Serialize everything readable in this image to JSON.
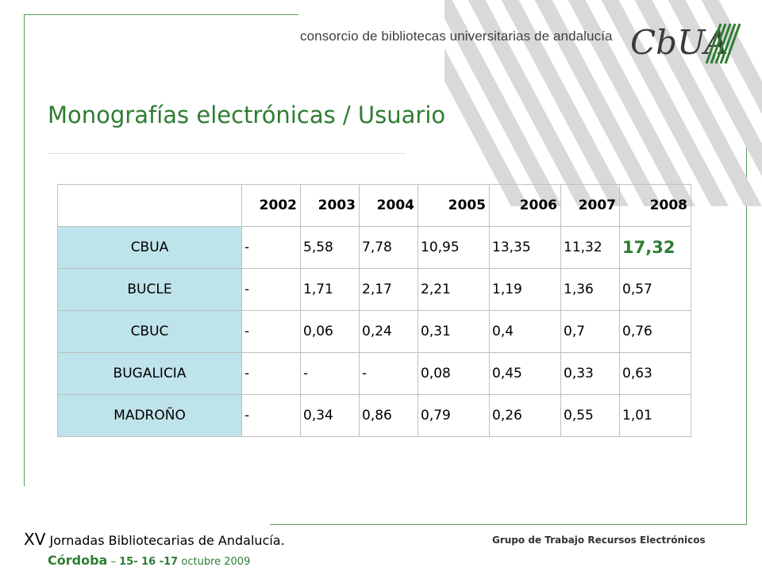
{
  "header": {
    "consortium_text": "consorcio de bibliotecas universitarias de andalucía",
    "logo_text": "CbUA"
  },
  "title": "Monografías electrónicas / Usuario",
  "table": {
    "years": [
      "2002",
      "2003",
      "2004",
      "2005",
      "2006",
      "2007",
      "2008"
    ],
    "rows": [
      {
        "label": "CBUA",
        "values": [
          "-",
          "5,58",
          "7,78",
          "10,95",
          "13,35",
          "11,32",
          "17,32"
        ]
      },
      {
        "label": "BUCLE",
        "values": [
          "-",
          "1,71",
          "2,17",
          "2,21",
          "1,19",
          "1,36",
          "0,57"
        ]
      },
      {
        "label": "CBUC",
        "values": [
          "-",
          "0,06",
          "0,24",
          "0,31",
          "0,4",
          "0,7",
          "0,76"
        ]
      },
      {
        "label": "BUGALICIA",
        "values": [
          "-",
          "-",
          "-",
          "0,08",
          "0,45",
          "0,33",
          "0,63"
        ]
      },
      {
        "label": "MADROÑO",
        "values": [
          "-",
          "0,34",
          "0,86",
          "0,79",
          "0,26",
          "0,55",
          "1,01"
        ]
      }
    ]
  },
  "footer": {
    "xv": "XV",
    "event": "Jornadas Bibliotecarias de Andalucía.",
    "city": "Córdoba",
    "dash": "–",
    "dates": "15- 16 -17",
    "month_year": "octubre 2009",
    "group": "Grupo de Trabajo Recursos Electrónicos"
  },
  "colors": {
    "title_green": "#2e7d32",
    "row_label_bg": "#bfe3ea",
    "stripe_grey": "#d9d9d9"
  }
}
